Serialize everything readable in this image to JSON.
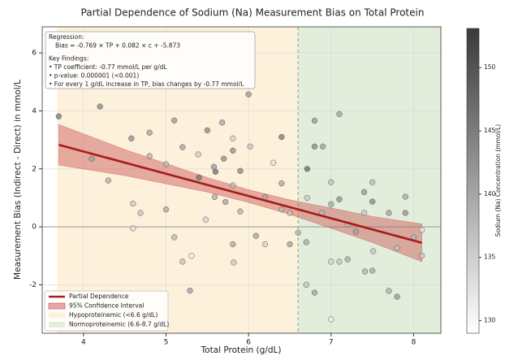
{
  "chart_data": {
    "type": "scatter",
    "title": "Partial Dependence of Sodium (Na) Measurement Bias on Total Protein",
    "xlabel": "Total Protein (g/dL)",
    "ylabel": "Measurement Bias (Indirect - Direct) in mmol/L",
    "xlim": [
      3.5,
      8.33
    ],
    "ylim": [
      -3.67,
      6.9
    ],
    "xticks": [
      4,
      5,
      6,
      7,
      8
    ],
    "yticks": [
      -2,
      0,
      2,
      4,
      6
    ],
    "grid": true,
    "legend": "lower left",
    "regions": [
      {
        "name": "Hypoproteinemic (<6.6 g/dL)",
        "range": [
          3.68,
          6.6
        ],
        "color": "#fdf1dc"
      },
      {
        "name": "Normoproteinemic (6.6-8.7 g/dL)",
        "range": [
          6.6,
          8.7
        ],
        "color": "#e2eedb"
      }
    ],
    "vline": 6.6,
    "hline": 0,
    "fit": {
      "name": "Partial Dependence",
      "color": "#a61c1c",
      "x": [
        3.7,
        8.1
      ],
      "y": [
        2.83,
        -0.55
      ]
    },
    "band": {
      "name": "95% Confidence Interval",
      "color": "#c9514f",
      "x": [
        3.7,
        4.5,
        5.5,
        6,
        6.5,
        7,
        7.5,
        8.1
      ],
      "upper": [
        3.53,
        2.67,
        1.7,
        1.28,
        0.93,
        0.65,
        0.36,
        0.1
      ],
      "lower": [
        2.13,
        1.77,
        1.2,
        0.84,
        0.43,
        -0.05,
        -0.54,
        -1.2
      ]
    },
    "x": [
      3.7,
      4.2,
      4.1,
      4.3,
      4.58,
      4.8,
      4.8,
      4.6,
      4.6,
      4.69,
      4.6,
      5.0,
      5.0,
      5.1,
      5.1,
      5.2,
      5.2,
      5.29,
      5.31,
      5.39,
      5.4,
      5.48,
      5.5,
      5.58,
      5.59,
      5.6,
      5.68,
      5.7,
      5.72,
      5.81,
      5.81,
      5.82,
      5.81,
      5.81,
      5.9,
      5.9,
      6.0,
      6.02,
      6.09,
      6.2,
      6.2,
      6.3,
      6.4,
      6.4,
      6.4,
      6.5,
      6.5,
      6.6,
      6.71,
      6.71,
      6.7,
      6.7,
      6.8,
      6.8,
      6.8,
      6.89,
      6.9,
      7.0,
      7.0,
      7.0,
      7.0,
      7.1,
      7.1,
      7.1,
      7.2,
      7.2,
      7.3,
      7.4,
      7.4,
      7.41,
      7.5,
      7.5,
      7.51,
      7.5,
      7.7,
      7.7,
      7.8,
      7.8,
      7.9,
      7.9,
      8.0,
      8.1,
      8.1
    ],
    "y": [
      3.81,
      4.15,
      2.35,
      1.6,
      3.05,
      3.25,
      2.44,
      0.8,
      -0.05,
      0.48,
      6.33,
      2.16,
      0.6,
      3.67,
      -0.36,
      2.75,
      -1.2,
      -2.2,
      -1.0,
      2.5,
      1.7,
      0.25,
      3.33,
      2.07,
      1.03,
      1.9,
      3.6,
      2.35,
      0.86,
      2.63,
      1.43,
      -1.23,
      3.05,
      -0.6,
      1.93,
      0.53,
      4.57,
      2.77,
      -0.31,
      1.03,
      -0.6,
      2.21,
      3.1,
      1.5,
      0.6,
      -0.6,
      0.48,
      -0.2,
      2.0,
      1.0,
      -0.53,
      -2.0,
      3.66,
      2.77,
      -2.27,
      0.48,
      2.77,
      1.54,
      0.78,
      -1.2,
      -3.19,
      3.89,
      0.95,
      -1.2,
      -1.12,
      0.08,
      -0.17,
      1.2,
      0.48,
      -1.54,
      1.54,
      0.87,
      -0.84,
      -1.51,
      -2.21,
      0.48,
      -0.73,
      -2.41,
      1.04,
      0.48,
      -0.36,
      -0.1,
      -1.0
    ],
    "c": [
      145,
      143,
      140,
      138,
      142,
      140,
      138,
      135,
      133,
      136,
      132,
      137,
      139,
      141,
      137,
      140,
      136,
      140,
      131,
      135,
      145,
      134,
      143,
      141,
      138,
      146,
      139,
      142,
      140,
      142,
      137,
      135,
      134,
      139,
      143,
      138,
      141,
      136,
      140,
      139,
      134,
      132,
      145,
      139,
      137,
      140,
      136,
      138,
      147,
      135,
      139,
      136,
      141,
      143,
      140,
      137,
      140,
      136,
      139,
      134,
      131,
      140,
      142,
      136,
      139,
      137,
      140,
      141,
      135,
      138,
      137,
      143,
      136,
      139,
      138,
      140,
      136,
      141,
      139,
      142,
      137,
      132,
      135
    ],
    "colorbar": {
      "label": "Sodium (Na) Concentration (mmol/L)",
      "clim": [
        129,
        153.1
      ],
      "ticks": [
        130,
        135,
        140,
        145,
        150
      ]
    },
    "annotation": {
      "corner": "upper left",
      "lines": [
        "Regression:",
        "Bias = -0.769 × TP + 0.082 × c + -5.873",
        "Key Findings:",
        "• TP coefficient: -0.77 mmol/L per g/dL",
        "• p-value: 0.000001 (<0.001)",
        "• For every 1 g/dL increase in TP, bias changes by -0.77 mmol/L"
      ]
    }
  }
}
